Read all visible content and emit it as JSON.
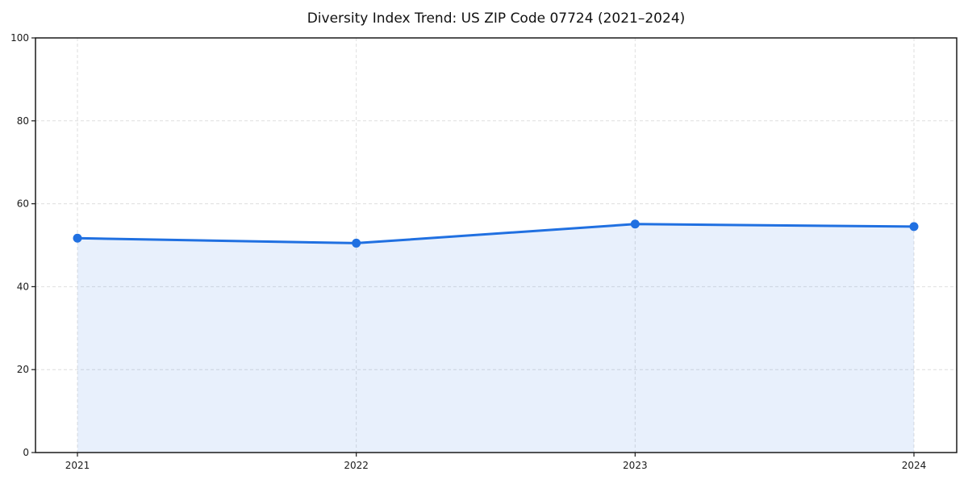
{
  "page": {
    "background": "#ffffff"
  },
  "chart_data": {
    "type": "area",
    "title": "Diversity Index Trend: US ZIP Code 07724 (2021–2024)",
    "categories": [
      "2021",
      "2022",
      "2023",
      "2024"
    ],
    "values": [
      51.7,
      50.5,
      55.1,
      54.5
    ],
    "xlabel": "",
    "ylabel": "",
    "ylim": [
      0,
      100
    ],
    "yticks": [
      0,
      20,
      40,
      60,
      80,
      100
    ],
    "grid": true,
    "grid_style": "dashed",
    "legend": "none",
    "line_color": "#2070e1",
    "marker": "circle",
    "fill_opacity": 0.1,
    "grid_color": "#dedede",
    "text_color": "#1a1a1a"
  }
}
